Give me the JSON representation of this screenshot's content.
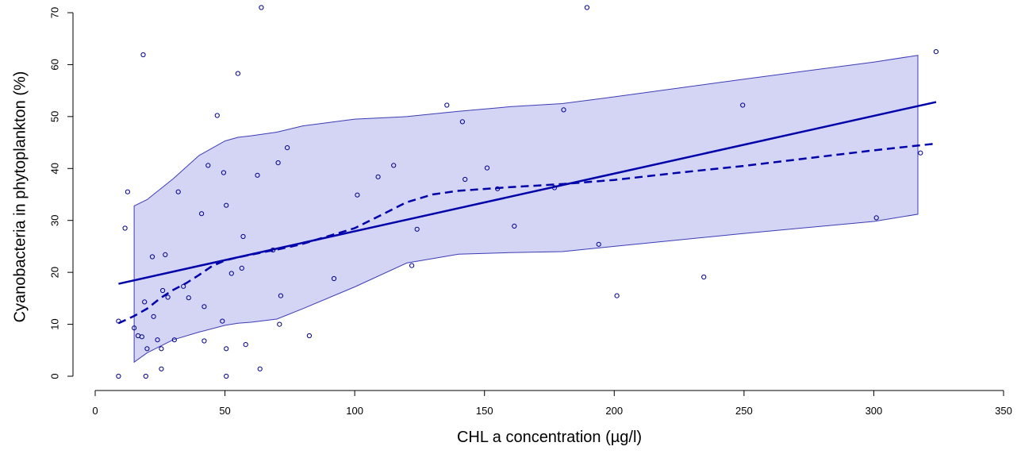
{
  "chart_data": {
    "type": "scatter",
    "title": "",
    "xlabel": "CHL a concentration (µg/l)",
    "ylabel": "Cyanobacteria in phytoplankton (%)",
    "xlim": [
      0,
      350
    ],
    "ylim": [
      0,
      70
    ],
    "xticks": [
      0,
      50,
      100,
      150,
      200,
      250,
      300,
      350
    ],
    "yticks": [
      0,
      10,
      20,
      30,
      40,
      50,
      60,
      70
    ],
    "grid": false,
    "legend": "none",
    "colors": {
      "points": "#00008b",
      "regression_line": "#0000aa",
      "smooth_line": "#0000aa",
      "band_fill": "#d4d4f5",
      "band_edge": "#3c3cb4"
    },
    "points": [
      [
        9,
        10.6
      ],
      [
        9,
        0
      ],
      [
        11.5,
        28.5
      ],
      [
        12.5,
        35.5
      ],
      [
        15,
        9.3
      ],
      [
        16.5,
        7.8
      ],
      [
        18,
        7.6
      ],
      [
        18.5,
        61.9
      ],
      [
        19,
        14.3
      ],
      [
        19.5,
        0
      ],
      [
        20,
        5.3
      ],
      [
        22,
        23
      ],
      [
        22.5,
        11.5
      ],
      [
        24,
        7
      ],
      [
        25.5,
        5.3
      ],
      [
        25.5,
        1.4
      ],
      [
        26,
        16.5
      ],
      [
        27,
        23.4
      ],
      [
        28,
        15.2
      ],
      [
        30.5,
        7
      ],
      [
        32,
        35.5
      ],
      [
        34,
        17.3
      ],
      [
        36,
        15.1
      ],
      [
        41,
        31.3
      ],
      [
        42,
        6.8
      ],
      [
        42,
        13.4
      ],
      [
        43.5,
        40.6
      ],
      [
        47,
        50.2
      ],
      [
        49,
        10.6
      ],
      [
        49.5,
        39.2
      ],
      [
        50.5,
        32.9
      ],
      [
        50.5,
        5.3
      ],
      [
        50.5,
        0
      ],
      [
        52.5,
        19.8
      ],
      [
        55,
        58.3
      ],
      [
        56.5,
        20.8
      ],
      [
        57,
        26.9
      ],
      [
        58,
        6.1
      ],
      [
        62.5,
        38.7
      ],
      [
        63.5,
        1.4
      ],
      [
        64,
        71
      ],
      [
        68.5,
        24.3
      ],
      [
        70.5,
        41.1
      ],
      [
        71,
        10
      ],
      [
        71.5,
        15.5
      ],
      [
        74,
        44
      ],
      [
        82.5,
        7.8
      ],
      [
        92,
        18.8
      ],
      [
        101,
        34.9
      ],
      [
        109,
        38.4
      ],
      [
        115,
        40.6
      ],
      [
        122,
        21.3
      ],
      [
        124,
        28.3
      ],
      [
        135.5,
        52.2
      ],
      [
        141.5,
        49
      ],
      [
        142.5,
        37.9
      ],
      [
        151,
        40.1
      ],
      [
        155,
        36.1
      ],
      [
        161.5,
        28.9
      ],
      [
        177,
        36.3
      ],
      [
        180.5,
        51.3
      ],
      [
        189.5,
        71
      ],
      [
        194,
        25.4
      ],
      [
        201,
        15.5
      ],
      [
        234.5,
        19.1
      ],
      [
        249.5,
        52.2
      ],
      [
        301,
        30.5
      ],
      [
        318,
        43
      ],
      [
        324,
        62.5
      ]
    ],
    "regression_line": {
      "x": [
        9,
        324
      ],
      "y": [
        17.8,
        52.8
      ]
    },
    "smooth_line": {
      "x": [
        9,
        15,
        20,
        25,
        30,
        35,
        40,
        45,
        50,
        55,
        60,
        65,
        70,
        75,
        80,
        90,
        100,
        110,
        120,
        130,
        140,
        160,
        180,
        200,
        225,
        250,
        275,
        300,
        324
      ],
      "y": [
        10.2,
        11.6,
        13,
        15,
        16.6,
        17.9,
        19.5,
        21.2,
        22.3,
        22.9,
        23.4,
        23.9,
        24.4,
        24.9,
        25.5,
        27,
        28.5,
        31,
        33.5,
        35,
        35.7,
        36.4,
        37,
        37.8,
        39.2,
        40.5,
        42,
        43.5,
        44.8
      ]
    },
    "confidence_band": {
      "x": [
        15,
        20,
        30,
        40,
        50,
        55,
        60,
        70,
        80,
        100,
        120,
        140,
        160,
        180,
        200,
        250,
        300,
        317
      ],
      "upper": [
        32.8,
        34,
        38,
        42.5,
        45.3,
        46,
        46.3,
        47,
        48.2,
        49.5,
        50,
        51,
        51.9,
        52.5,
        53.8,
        57.2,
        60.5,
        61.8
      ],
      "lower": [
        2.7,
        4.5,
        7,
        8.5,
        9.8,
        10.2,
        10.4,
        11,
        13,
        17.2,
        21.8,
        23.5,
        23.8,
        24,
        25,
        27.5,
        29.8,
        31.2
      ]
    }
  }
}
